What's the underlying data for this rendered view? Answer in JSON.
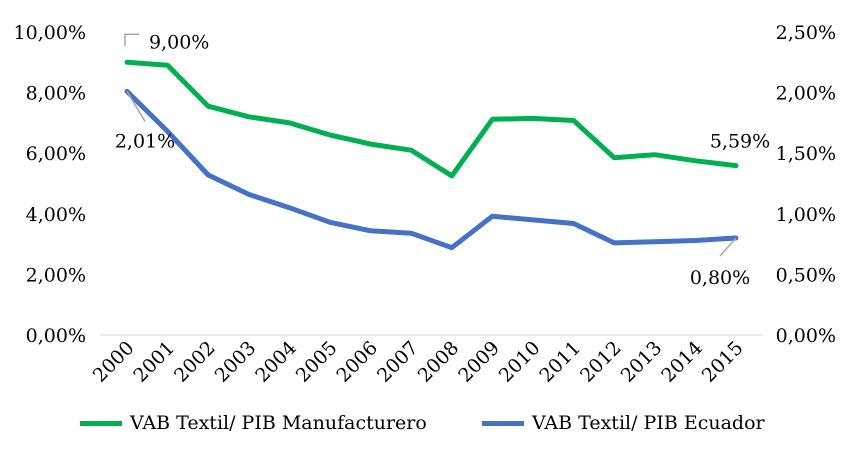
{
  "chart_data": {
    "type": "line",
    "categories": [
      "2000",
      "2001",
      "2002",
      "2003",
      "2004",
      "2005",
      "2006",
      "2007",
      "2008",
      "2009",
      "2010",
      "2011",
      "2012",
      "2013",
      "2014",
      "2015"
    ],
    "left_axis": {
      "ylim": [
        0,
        10
      ],
      "ticks": [
        0,
        2,
        4,
        6,
        8,
        10
      ],
      "tick_labels": [
        "0,00%",
        "2,00%",
        "4,00%",
        "6,00%",
        "8,00%",
        "10,00%"
      ]
    },
    "right_axis": {
      "ylim": [
        0,
        2.5
      ],
      "ticks": [
        0,
        0.5,
        1.0,
        1.5,
        2.0,
        2.5
      ],
      "tick_labels": [
        "0,00%",
        "0,50%",
        "1,00%",
        "1,50%",
        "2,00%",
        "2,50%"
      ]
    },
    "series": [
      {
        "name": "VAB Textil/ PIB Manufacturero",
        "axis": "left",
        "color": "#00B050",
        "values": [
          9.0,
          8.9,
          7.55,
          7.2,
          7.0,
          6.6,
          6.3,
          6.1,
          5.25,
          7.12,
          7.15,
          7.08,
          5.85,
          5.95,
          5.75,
          5.59
        ]
      },
      {
        "name": "VAB Textil/ PIB Ecuador",
        "axis": "right",
        "color": "#4472C4",
        "values": [
          2.01,
          1.68,
          1.32,
          1.16,
          1.05,
          0.93,
          0.86,
          0.84,
          0.72,
          0.98,
          0.95,
          0.92,
          0.76,
          0.77,
          0.78,
          0.8
        ]
      }
    ],
    "data_labels": [
      {
        "series": 0,
        "index": 0,
        "text": "9,00%"
      },
      {
        "series": 0,
        "index": 15,
        "text": "5,59%"
      },
      {
        "series": 1,
        "index": 0,
        "text": "2,01%"
      },
      {
        "series": 1,
        "index": 15,
        "text": "0,80%"
      }
    ],
    "legend_position": "bottom",
    "grid": false
  }
}
